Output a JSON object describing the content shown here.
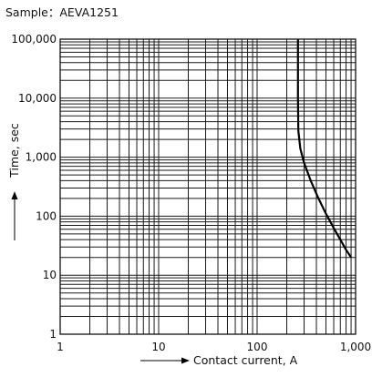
{
  "chart_data": {
    "type": "line",
    "title": "",
    "subtitle": "Sample：AEVA1251",
    "xlabel": "Contact current, A",
    "ylabel": "Time, sec",
    "x_scale": "log",
    "y_scale": "log",
    "xlim": [
      1,
      1000
    ],
    "ylim": [
      1,
      100000
    ],
    "x_ticks": [
      "1",
      "10",
      "100",
      "1,000"
    ],
    "y_ticks": [
      "1",
      "10",
      "100",
      "1,000",
      "10,000",
      "100,000"
    ],
    "grid": true,
    "legend": "none",
    "series": [
      {
        "x": [
          260,
          260,
          262,
          275,
          300,
          350,
          420,
          500,
          600,
          700,
          800,
          900
        ],
        "y": [
          100000,
          10000,
          2800,
          1400,
          800,
          400,
          200,
          110,
          63,
          40,
          27,
          20
        ]
      }
    ]
  }
}
